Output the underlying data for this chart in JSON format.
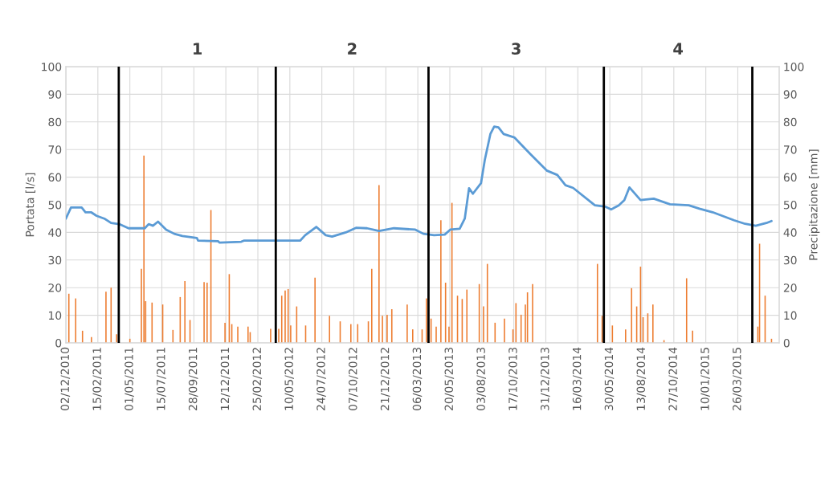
{
  "chart_data": {
    "type": "line",
    "ylabel": "Portata [l/s]",
    "y2label": "Precipitazione [mm]",
    "annotations": [
      "1",
      "2",
      "3",
      "4"
    ],
    "xlim": [
      "2010-12-02",
      "2015-07-01"
    ],
    "xticks": [
      {
        "value": "2010-12-02",
        "label": "02/12/2010"
      },
      {
        "value": "2011-02-15",
        "label": "15/02/2011"
      },
      {
        "value": "2011-05-01",
        "label": "01/05/2011"
      },
      {
        "value": "2011-07-15",
        "label": "15/07/2011"
      },
      {
        "value": "2011-09-28",
        "label": "28/09/2011"
      },
      {
        "value": "2011-12-12",
        "label": "12/12/2011"
      },
      {
        "value": "2012-02-25",
        "label": "25/02/2012"
      },
      {
        "value": "2012-05-10",
        "label": "10/05/2012"
      },
      {
        "value": "2012-07-24",
        "label": "24/07/2012"
      },
      {
        "value": "2012-10-07",
        "label": "07/10/2012"
      },
      {
        "value": "2012-12-21",
        "label": "21/12/2012"
      },
      {
        "value": "2013-03-06",
        "label": "06/03/2013"
      },
      {
        "value": "2013-05-20",
        "label": "20/05/2013"
      },
      {
        "value": "2013-08-03",
        "label": "03/08/2013"
      },
      {
        "value": "2013-10-17",
        "label": "17/10/2013"
      },
      {
        "value": "2013-12-31",
        "label": "31/12/2013"
      },
      {
        "value": "2014-03-16",
        "label": "16/03/2014"
      },
      {
        "value": "2014-05-30",
        "label": "30/05/2014"
      },
      {
        "value": "2014-08-13",
        "label": "13/08/2014"
      },
      {
        "value": "2014-10-27",
        "label": "27/10/2014"
      },
      {
        "value": "2015-01-10",
        "label": "10/01/2015"
      },
      {
        "value": "2015-03-26",
        "label": "26/03/2015"
      }
    ],
    "ylim": [
      0,
      100
    ],
    "yticks": [
      0,
      10,
      20,
      30,
      40,
      50,
      60,
      70,
      80,
      90,
      100
    ],
    "y2lim": [
      0,
      100
    ],
    "y2ticks": [
      0,
      10,
      20,
      30,
      40,
      50,
      60,
      70,
      80,
      90,
      100
    ],
    "grid": true,
    "ref_lines": [
      {
        "axis": "x",
        "value": "2011-04-05",
        "color": "#000000"
      },
      {
        "axis": "x",
        "value": "2012-04-07",
        "color": "#000000"
      },
      {
        "axis": "x",
        "value": "2013-03-31",
        "color": "#000000"
      },
      {
        "axis": "x",
        "value": "2014-05-16",
        "color": "#000000"
      },
      {
        "axis": "x",
        "value": "2015-04-29",
        "color": "#000000"
      }
    ],
    "series": [
      {
        "color": "#5b9bd5",
        "x": [
          "2010-12-02",
          "2010-12-14",
          "2011-01-08",
          "2011-01-17",
          "2011-01-30",
          "2011-02-12",
          "2011-03-02",
          "2011-03-18",
          "2011-04-06",
          "2011-04-28",
          "2011-06-05",
          "2011-06-14",
          "2011-06-24",
          "2011-07-06",
          "2011-07-25",
          "2011-08-13",
          "2011-09-01",
          "2011-10-05",
          "2011-10-08",
          "2011-11-24",
          "2011-11-27",
          "2012-01-17",
          "2012-01-23",
          "2012-06-03",
          "2012-06-15",
          "2012-07-11",
          "2012-08-02",
          "2012-08-17",
          "2012-09-18",
          "2012-10-13",
          "2012-11-07",
          "2012-12-05",
          "2013-01-09",
          "2013-02-28",
          "2013-03-19",
          "2013-04-13",
          "2013-05-08",
          "2013-05-21",
          "2013-06-12",
          "2013-06-24",
          "2013-07-04",
          "2013-07-13",
          "2013-08-01",
          "2013-08-10",
          "2013-08-23",
          "2013-09-01",
          "2013-09-11",
          "2013-09-23",
          "2013-10-18",
          "2013-11-25",
          "2014-01-02",
          "2014-01-27",
          "2014-02-15",
          "2014-03-05",
          "2014-04-25",
          "2014-05-20",
          "2014-06-02",
          "2014-06-20",
          "2014-07-03",
          "2014-07-15",
          "2014-08-10",
          "2014-09-10",
          "2014-10-18",
          "2014-12-01",
          "2014-12-26",
          "2015-01-26",
          "2015-03-17",
          "2015-04-12",
          "2015-05-07",
          "2015-06-01",
          "2015-06-13"
        ],
        "values": [
          45,
          49,
          49,
          47.3,
          47.3,
          46,
          45,
          43.4,
          43,
          41.5,
          41.5,
          43,
          42.4,
          43.9,
          41,
          39.5,
          38.7,
          38,
          37,
          36.8,
          36.3,
          36.6,
          37,
          37,
          39,
          42,
          39,
          38.5,
          40,
          41.7,
          41.5,
          40.5,
          41.5,
          41,
          39.5,
          39,
          39.2,
          41,
          41.3,
          45,
          56,
          54,
          57.8,
          66.3,
          75.6,
          78.3,
          78,
          75.6,
          74.4,
          68.3,
          62.4,
          60.8,
          57.1,
          56.1,
          49.8,
          49.3,
          48.3,
          49.8,
          51.7,
          56.3,
          51.7,
          52.2,
          50.2,
          49.8,
          48.6,
          47.3,
          44.4,
          43.1,
          42.4,
          43.4,
          44.1
        ]
      },
      {
        "type": "bar",
        "axis": "y2",
        "color": "#ed7d31",
        "x": [
          "2010-12-09",
          "2010-12-25",
          "2011-01-10",
          "2011-01-31",
          "2011-03-06",
          "2011-03-18",
          "2011-03-31",
          "2011-05-01",
          "2011-05-28",
          "2011-06-03",
          "2011-06-07",
          "2011-06-22",
          "2011-07-17",
          "2011-08-10",
          "2011-08-27",
          "2011-09-07",
          "2011-09-19",
          "2011-10-22",
          "2011-10-29",
          "2011-11-07",
          "2011-12-10",
          "2011-12-20",
          "2011-12-26",
          "2012-01-09",
          "2012-02-02",
          "2012-02-07",
          "2012-03-26",
          "2012-04-14",
          "2012-04-21",
          "2012-04-29",
          "2012-05-06",
          "2012-05-12",
          "2012-05-26",
          "2012-06-16",
          "2012-07-08",
          "2012-08-11",
          "2012-09-05",
          "2012-09-30",
          "2012-10-16",
          "2012-11-10",
          "2012-11-18",
          "2012-12-05",
          "2012-12-13",
          "2012-12-24",
          "2013-01-04",
          "2013-02-09",
          "2013-02-22",
          "2013-03-16",
          "2013-03-26",
          "2013-04-06",
          "2013-04-18",
          "2013-04-29",
          "2013-05-10",
          "2013-05-18",
          "2013-05-25",
          "2013-06-07",
          "2013-06-18",
          "2013-06-29",
          "2013-07-28",
          "2013-08-07",
          "2013-08-16",
          "2013-09-03",
          "2013-09-25",
          "2013-10-15",
          "2013-10-22",
          "2013-11-03",
          "2013-11-13",
          "2013-11-18",
          "2013-11-30",
          "2014-05-01",
          "2014-05-12",
          "2014-06-05",
          "2014-07-06",
          "2014-07-20",
          "2014-08-01",
          "2014-08-10",
          "2014-08-16",
          "2014-08-27",
          "2014-09-08",
          "2014-10-04",
          "2014-11-26",
          "2014-12-10",
          "2015-05-12",
          "2015-05-16",
          "2015-05-29",
          "2015-06-13"
        ],
        "values": [
          17.8,
          16.1,
          4.4,
          2.1,
          18.5,
          20,
          3.1,
          1.5,
          26.8,
          67.8,
          15.1,
          14.6,
          13.9,
          4.7,
          16.6,
          22.4,
          8.3,
          22,
          21.8,
          48.1,
          7.3,
          24.9,
          6.8,
          5.9,
          5.9,
          3.9,
          5.1,
          5.1,
          17.1,
          19,
          19.5,
          6.3,
          13.2,
          6.3,
          23.6,
          9.8,
          7.8,
          6.8,
          6.8,
          7.8,
          26.8,
          57.1,
          9.8,
          10.2,
          12.2,
          13.9,
          4.9,
          4.9,
          16.1,
          8.8,
          5.9,
          44.4,
          21.8,
          5.9,
          50.7,
          17.1,
          15.9,
          19.3,
          21.3,
          13.2,
          28.6,
          7.3,
          8.8,
          4.9,
          14.4,
          10.2,
          13.9,
          18.3,
          21.3,
          28.6,
          9.8,
          6.3,
          4.9,
          19.8,
          13.2,
          27.6,
          9.3,
          10.7,
          13.9,
          1,
          23.4,
          4.4,
          5.9,
          35.9,
          17.1,
          1.5
        ]
      }
    ]
  }
}
